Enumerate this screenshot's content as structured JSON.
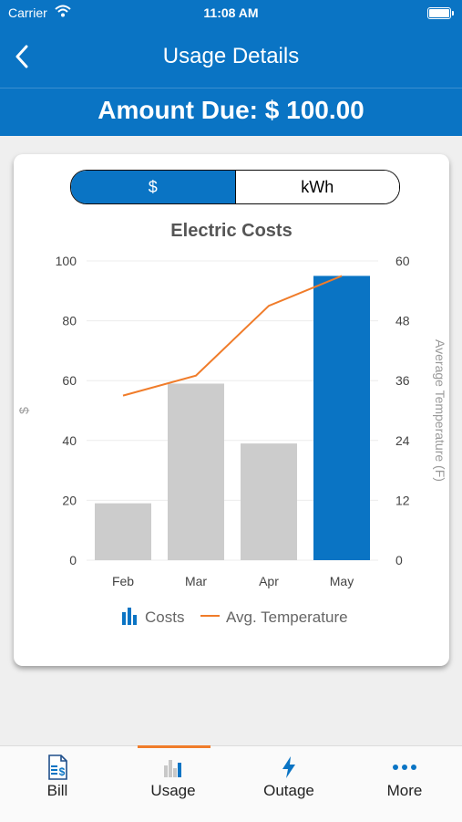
{
  "status_bar": {
    "carrier": "Carrier",
    "time": "11:08 AM"
  },
  "nav": {
    "title": "Usage Details"
  },
  "amount_due": "Amount Due: $ 100.00",
  "toggle": {
    "options": [
      "$",
      "kWh"
    ],
    "selected": "$"
  },
  "colors": {
    "brand_blue": "#0a74c4",
    "bar_gray": "#cccccc",
    "line_orange": "#f07c2a"
  },
  "chart_data": {
    "type": "bar",
    "title": "Electric Costs",
    "categories": [
      "Feb",
      "Mar",
      "Apr",
      "May"
    ],
    "series": [
      {
        "name": "Costs",
        "type": "bar",
        "axis": "left",
        "values": [
          19,
          59,
          39,
          95
        ],
        "highlight_index": 3
      },
      {
        "name": "Avg. Temperature",
        "type": "line",
        "axis": "right",
        "values": [
          33,
          37,
          51,
          57
        ]
      }
    ],
    "ylabel": "$",
    "ylabel_right": "Average Temperature (F)",
    "ylim": [
      0,
      100
    ],
    "ylim_right": [
      0,
      60
    ],
    "yticks": [
      0,
      20,
      40,
      60,
      80,
      100
    ],
    "yticks_right": [
      0,
      12,
      24,
      36,
      48,
      60
    ],
    "grid": true,
    "legend": "bottom-center"
  },
  "tabs": [
    {
      "label": "Bill",
      "icon": "bill-icon",
      "active": false
    },
    {
      "label": "Usage",
      "icon": "usage-chart-icon",
      "active": true
    },
    {
      "label": "Outage",
      "icon": "lightning-icon",
      "active": false
    },
    {
      "label": "More",
      "icon": "more-dots-icon",
      "active": false
    }
  ]
}
